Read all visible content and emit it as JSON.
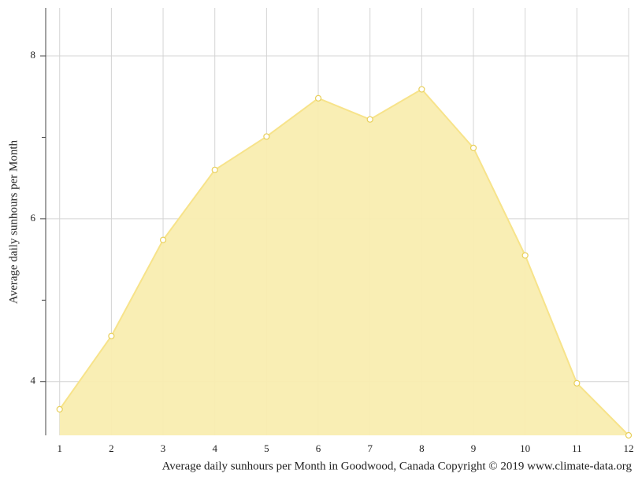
{
  "chart_data": {
    "type": "area",
    "title": "Average daily sunhours per Month in Goodwood, Canada Copyright © 2019 www.climate-data.org",
    "ylabel": "Average daily sunhours per Month",
    "x": [
      1,
      2,
      3,
      4,
      5,
      6,
      7,
      8,
      9,
      10,
      11,
      12
    ],
    "values": [
      3.66,
      4.56,
      5.74,
      6.6,
      7.01,
      7.48,
      7.22,
      7.59,
      6.87,
      5.55,
      3.98,
      3.34
    ],
    "color": "#f9edb0",
    "line_color": "#f7e38a",
    "marker_color": "#e8cf5a",
    "xlim": [
      0.73,
      12
    ],
    "xticks": [
      1,
      2,
      3,
      4,
      5,
      6,
      7,
      8,
      9,
      10,
      11,
      12
    ],
    "ylim": [
      3.34,
      8.59
    ],
    "yticks": [
      4,
      6,
      8
    ],
    "yminorticks": [
      5,
      7
    ],
    "grid": true
  }
}
